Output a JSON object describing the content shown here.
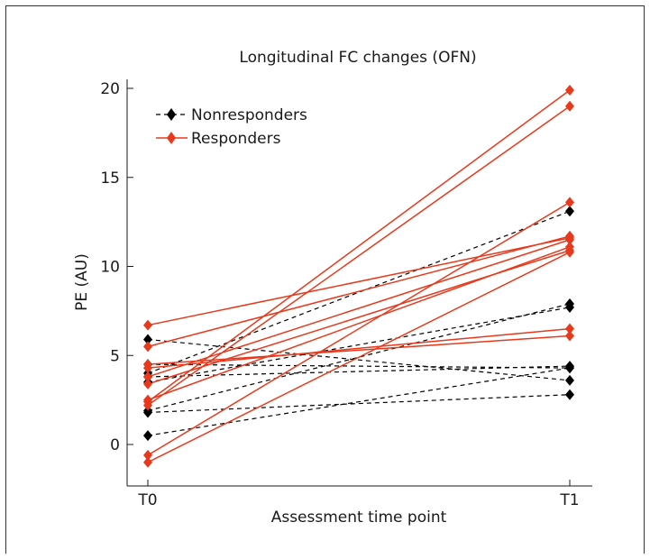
{
  "chart_data": {
    "type": "line",
    "title": "Longitudinal FC changes (OFN)",
    "xlabel": "Assessment time point",
    "ylabel": "PE (AU)",
    "categories": [
      "T0",
      "T1"
    ],
    "ylim": [
      -1.5,
      20.5
    ],
    "yticks": [
      0,
      5,
      10,
      15,
      20
    ],
    "legend_position": "top-left",
    "series": [
      {
        "name": "Nonresponders",
        "color": "#000000",
        "line_style": "dashed",
        "marker": "diamond",
        "lines": [
          [
            5.9,
            3.6
          ],
          [
            4.5,
            4.3
          ],
          [
            3.8,
            4.4
          ],
          [
            3.5,
            7.7
          ],
          [
            1.9,
            7.9
          ],
          [
            1.8,
            2.8
          ],
          [
            0.5,
            4.3
          ],
          [
            4.0,
            13.1
          ]
        ]
      },
      {
        "name": "Responders",
        "color": "#e8391c",
        "line_style": "solid",
        "marker": "diamond",
        "lines": [
          [
            6.7,
            11.6
          ],
          [
            5.5,
            11.7
          ],
          [
            4.5,
            6.1
          ],
          [
            4.3,
            6.5
          ],
          [
            3.8,
            11.5
          ],
          [
            3.4,
            10.9
          ],
          [
            2.5,
            11.1
          ],
          [
            2.4,
            19.9
          ],
          [
            2.2,
            19.0
          ],
          [
            -0.6,
            13.6
          ],
          [
            -1.0,
            10.8
          ]
        ]
      }
    ]
  }
}
